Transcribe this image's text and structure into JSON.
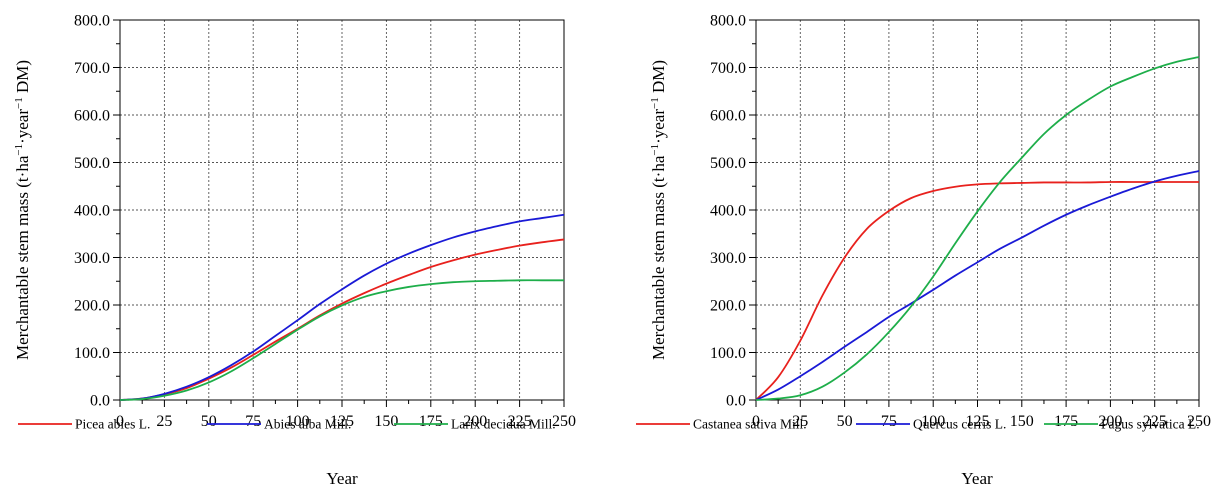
{
  "chart_data": [
    {
      "type": "line",
      "title": "",
      "xlabel": "Year",
      "ylabel_parts": [
        "Merchantable stem mass (t·ha",
        "−1",
        "·year",
        "−1",
        " DM)"
      ],
      "xlim": [
        0,
        250
      ],
      "ylim": [
        0,
        800
      ],
      "xticks": [
        "0",
        "25",
        "50",
        "75",
        "100",
        "125",
        "150",
        "175",
        "200",
        "225",
        "250"
      ],
      "yticks": [
        "0.0",
        "100.0",
        "200.0",
        "300.0",
        "400.0",
        "500.0",
        "600.0",
        "700.0",
        "800.0"
      ],
      "grid": true,
      "legend_position": "bottom",
      "x": [
        0,
        12.5,
        25,
        37.5,
        50,
        62.5,
        75,
        87.5,
        100,
        112.5,
        125,
        137.5,
        150,
        162.5,
        175,
        187.5,
        200,
        212.5,
        225,
        237.5,
        250
      ],
      "series": [
        {
          "name": "Picea abies L.",
          "color": "#e8211d",
          "values": [
            0,
            3,
            12,
            25,
            45,
            68,
            95,
            123,
            150,
            178,
            203,
            225,
            245,
            263,
            280,
            294,
            306,
            316,
            325,
            332,
            338
          ]
        },
        {
          "name": "Abies alba Mill.",
          "color": "#1a1ad6",
          "values": [
            0,
            3,
            13,
            28,
            48,
            73,
            102,
            135,
            168,
            202,
            233,
            262,
            287,
            308,
            326,
            342,
            355,
            366,
            376,
            383,
            390
          ]
        },
        {
          "name": "Larix decidua Mill.",
          "color": "#1eae4a",
          "values": [
            0,
            2,
            9,
            20,
            37,
            60,
            88,
            118,
            148,
            176,
            199,
            217,
            229,
            238,
            244,
            248,
            250,
            251,
            252,
            252,
            252
          ]
        }
      ]
    },
    {
      "type": "line",
      "title": "",
      "xlabel": "Year",
      "ylabel_parts": [
        "Merchantable stem mass (t·ha",
        "−1",
        "·year",
        "−1",
        " DM)"
      ],
      "xlim": [
        0,
        250
      ],
      "ylim": [
        0,
        800
      ],
      "xticks": [
        "0",
        "25",
        "50",
        "75",
        "100",
        "125",
        "150",
        "175",
        "200",
        "225",
        "250"
      ],
      "yticks": [
        "0.0",
        "100.0",
        "200.0",
        "300.0",
        "400.0",
        "500.0",
        "600.0",
        "700.0",
        "800.0"
      ],
      "grid": true,
      "legend_position": "bottom",
      "x": [
        0,
        12.5,
        25,
        37.5,
        50,
        62.5,
        75,
        87.5,
        100,
        112.5,
        125,
        137.5,
        150,
        162.5,
        175,
        187.5,
        200,
        212.5,
        225,
        237.5,
        250
      ],
      "series": [
        {
          "name": "Castanea sativa Mill.",
          "color": "#e8211d",
          "values": [
            0,
            48,
            125,
            220,
            300,
            360,
            398,
            425,
            440,
            449,
            454,
            456,
            457,
            458,
            458,
            458,
            459,
            459,
            459,
            459,
            459
          ]
        },
        {
          "name": "Quercus cerris L.",
          "color": "#1a1ad6",
          "values": [
            0,
            22,
            50,
            80,
            112,
            143,
            175,
            203,
            232,
            262,
            290,
            318,
            342,
            367,
            390,
            410,
            428,
            445,
            460,
            472,
            482
          ]
        },
        {
          "name": "Fagus sylvatica L.",
          "color": "#1eae4a",
          "values": [
            0,
            3,
            10,
            28,
            58,
            96,
            143,
            197,
            260,
            330,
            397,
            458,
            510,
            560,
            600,
            632,
            660,
            680,
            698,
            712,
            722
          ]
        }
      ]
    }
  ]
}
